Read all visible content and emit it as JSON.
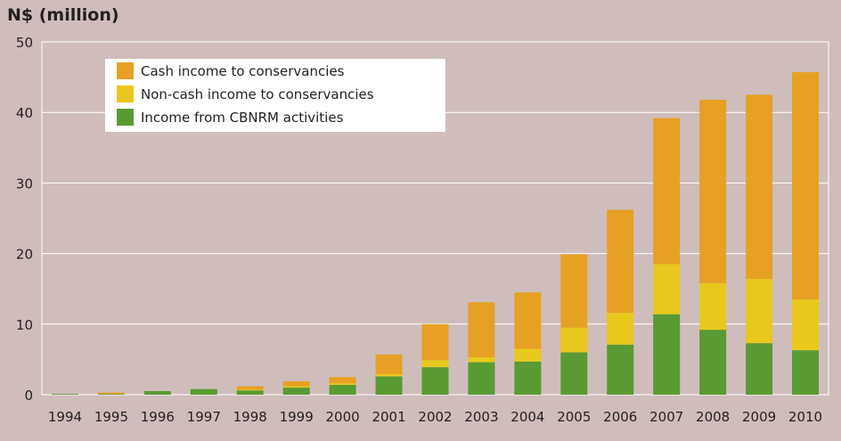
{
  "chart_data": {
    "type": "bar",
    "stacked": true,
    "title": "",
    "ylabel": "N$ (million)",
    "xlabel": "",
    "ylim": [
      0,
      50
    ],
    "yticks": [
      0,
      10,
      20,
      30,
      40,
      50
    ],
    "grid": true,
    "legend_position": "top-left",
    "categories": [
      "1994",
      "1995",
      "1996",
      "1997",
      "1998",
      "1999",
      "2000",
      "2001",
      "2002",
      "2003",
      "2004",
      "2005",
      "2006",
      "2007",
      "2008",
      "2009",
      "2010"
    ],
    "series": [
      {
        "name": "Income from CBNRM activities",
        "color": "#5a9a33",
        "values": [
          0.1,
          0.1,
          0.5,
          0.8,
          0.6,
          1.0,
          1.4,
          2.6,
          3.9,
          4.6,
          4.7,
          6.0,
          7.1,
          11.4,
          9.2,
          7.3,
          6.3
        ]
      },
      {
        "name": "Non-cash income to conservancies",
        "color": "#e8c81c",
        "values": [
          0,
          0,
          0,
          0,
          0.1,
          0.2,
          0.2,
          0.3,
          1.0,
          0.7,
          1.8,
          3.5,
          4.5,
          7.1,
          6.6,
          9.1,
          7.2
        ]
      },
      {
        "name": "Cash income to conservancies",
        "color": "#e6a124",
        "values": [
          0,
          0.2,
          0,
          0,
          0.5,
          0.7,
          0.9,
          2.8,
          5.1,
          7.8,
          8.0,
          10.4,
          14.6,
          20.7,
          26.0,
          26.1,
          32.2
        ]
      }
    ],
    "legend_order": [
      "Cash income to conservancies",
      "Non-cash income to conservancies",
      "Income from CBNRM activities"
    ]
  }
}
